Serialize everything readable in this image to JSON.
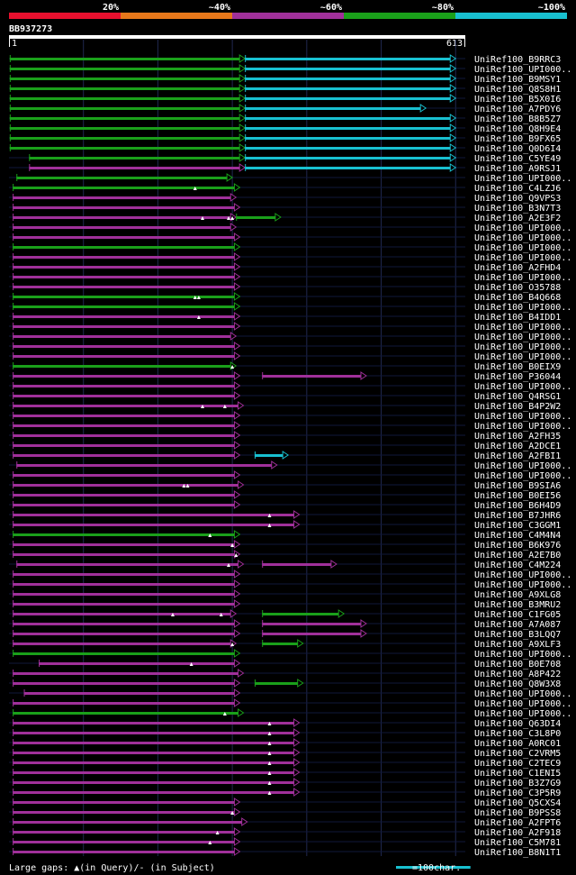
{
  "chart_data": {
    "type": "alignment-map",
    "query_id": "BB937273",
    "query_start": "1",
    "query_end": "613",
    "query_length": 613,
    "legend_bins": [
      {
        "label": "20%",
        "color": "#e8102e"
      },
      {
        "label": "~40%",
        "color": "#e8781a"
      },
      {
        "label": "~60%",
        "color": "#a0309a"
      },
      {
        "label": "~80%",
        "color": "#1aa01a"
      },
      {
        "label": "~100%",
        "color": "#18c0d0"
      }
    ],
    "footer_gaps": "Large gaps: ▲(in Query)/- (in Subject)",
    "footer_scale": "=100char.",
    "scale_chars": 100,
    "hits": [
      {
        "name": "UniRef100_B9RRC3",
        "segs": [
          [
            1,
            317,
            "g"
          ],
          [
            317,
            600,
            "c"
          ]
        ],
        "gaps": []
      },
      {
        "name": "UniRef100_UPI000..",
        "segs": [
          [
            1,
            317,
            "g"
          ],
          [
            317,
            600,
            "c"
          ]
        ],
        "gaps": []
      },
      {
        "name": "UniRef100_B9MSY1",
        "segs": [
          [
            1,
            317,
            "g"
          ],
          [
            317,
            600,
            "c"
          ]
        ],
        "gaps": []
      },
      {
        "name": "UniRef100_Q8S8H1",
        "segs": [
          [
            1,
            317,
            "g"
          ],
          [
            317,
            600,
            "c"
          ]
        ],
        "gaps": []
      },
      {
        "name": "UniRef100_B5X0I6",
        "segs": [
          [
            1,
            317,
            "g"
          ],
          [
            317,
            600,
            "c"
          ]
        ],
        "gaps": []
      },
      {
        "name": "UniRef100_A7PDY6",
        "segs": [
          [
            1,
            317,
            "g"
          ],
          [
            317,
            560,
            "c"
          ]
        ],
        "gaps": []
      },
      {
        "name": "UniRef100_B8B5Z7",
        "segs": [
          [
            1,
            317,
            "g"
          ],
          [
            317,
            600,
            "c"
          ]
        ],
        "gaps": []
      },
      {
        "name": "UniRef100_Q8H9E4",
        "segs": [
          [
            1,
            317,
            "g"
          ],
          [
            317,
            600,
            "c"
          ]
        ],
        "gaps": []
      },
      {
        "name": "UniRef100_B9FX65",
        "segs": [
          [
            1,
            317,
            "g"
          ],
          [
            317,
            600,
            "c"
          ]
        ],
        "gaps": []
      },
      {
        "name": "UniRef100_Q0D6I4",
        "segs": [
          [
            1,
            317,
            "g"
          ],
          [
            317,
            600,
            "c"
          ]
        ],
        "gaps": []
      },
      {
        "name": "UniRef100_C5YE49",
        "segs": [
          [
            27,
            317,
            "g"
          ],
          [
            317,
            600,
            "c"
          ]
        ],
        "gaps": []
      },
      {
        "name": "UniRef100_A9RSJ1",
        "segs": [
          [
            27,
            317,
            "p"
          ],
          [
            317,
            600,
            "c"
          ]
        ],
        "gaps": []
      },
      {
        "name": "UniRef100_UPI000..",
        "segs": [
          [
            10,
            300,
            "g"
          ]
        ],
        "gaps": []
      },
      {
        "name": "UniRef100_C4LZJ6",
        "segs": [
          [
            5,
            310,
            "g"
          ]
        ],
        "gaps": [
          250
        ]
      },
      {
        "name": "UniRef100_Q9VPS3",
        "segs": [
          [
            5,
            305,
            "p"
          ]
        ],
        "gaps": []
      },
      {
        "name": "UniRef100_B3N7T3",
        "segs": [
          [
            5,
            310,
            "p"
          ]
        ],
        "gaps": []
      },
      {
        "name": "UniRef100_A2E3F2",
        "segs": [
          [
            5,
            305,
            "p"
          ],
          [
            305,
            365,
            "g"
          ]
        ],
        "gaps": [
          260,
          295,
          300
        ]
      },
      {
        "name": "UniRef100_UPI000..",
        "segs": [
          [
            5,
            305,
            "p"
          ]
        ],
        "gaps": []
      },
      {
        "name": "UniRef100_UPI000..",
        "segs": [
          [
            5,
            310,
            "p"
          ]
        ],
        "gaps": []
      },
      {
        "name": "UniRef100_UPI000..",
        "segs": [
          [
            5,
            310,
            "g"
          ]
        ],
        "gaps": []
      },
      {
        "name": "UniRef100_UPI000..",
        "segs": [
          [
            5,
            310,
            "p"
          ]
        ],
        "gaps": []
      },
      {
        "name": "UniRef100_A2FHD4",
        "segs": [
          [
            5,
            310,
            "p"
          ]
        ],
        "gaps": []
      },
      {
        "name": "UniRef100_UPI000..",
        "segs": [
          [
            5,
            310,
            "p"
          ]
        ],
        "gaps": []
      },
      {
        "name": "UniRef100_O35788",
        "segs": [
          [
            5,
            310,
            "p"
          ]
        ],
        "gaps": []
      },
      {
        "name": "UniRef100_B4Q668",
        "segs": [
          [
            5,
            310,
            "g"
          ]
        ],
        "gaps": [
          250,
          255
        ]
      },
      {
        "name": "UniRef100_UPI000..",
        "segs": [
          [
            5,
            310,
            "g"
          ]
        ],
        "gaps": []
      },
      {
        "name": "UniRef100_B4IDD1",
        "segs": [
          [
            5,
            310,
            "p"
          ]
        ],
        "gaps": [
          255
        ]
      },
      {
        "name": "UniRef100_UPI000..",
        "segs": [
          [
            5,
            310,
            "p"
          ]
        ],
        "gaps": []
      },
      {
        "name": "UniRef100_UPI000..",
        "segs": [
          [
            5,
            305,
            "p"
          ]
        ],
        "gaps": []
      },
      {
        "name": "UniRef100_UPI000..",
        "segs": [
          [
            5,
            310,
            "p"
          ]
        ],
        "gaps": []
      },
      {
        "name": "UniRef100_UPI000..",
        "segs": [
          [
            5,
            310,
            "p"
          ]
        ],
        "gaps": []
      },
      {
        "name": "UniRef100_B0EIX9",
        "segs": [
          [
            5,
            305,
            "g"
          ]
        ],
        "gaps": [
          300
        ]
      },
      {
        "name": "UniRef100_P36044",
        "segs": [
          [
            5,
            310,
            "p"
          ],
          [
            340,
            480,
            "p"
          ]
        ],
        "gaps": []
      },
      {
        "name": "UniRef100_UPI000..",
        "segs": [
          [
            5,
            310,
            "p"
          ]
        ],
        "gaps": []
      },
      {
        "name": "UniRef100_Q4RSG1",
        "segs": [
          [
            5,
            310,
            "p"
          ]
        ],
        "gaps": []
      },
      {
        "name": "UniRef100_B4P2W2",
        "segs": [
          [
            5,
            315,
            "p"
          ]
        ],
        "gaps": [
          260,
          290
        ]
      },
      {
        "name": "UniRef100_UPI000..",
        "segs": [
          [
            5,
            310,
            "p"
          ]
        ],
        "gaps": []
      },
      {
        "name": "UniRef100_UPI000..",
        "segs": [
          [
            5,
            310,
            "p"
          ]
        ],
        "gaps": []
      },
      {
        "name": "UniRef100_A2FH35",
        "segs": [
          [
            5,
            310,
            "p"
          ]
        ],
        "gaps": []
      },
      {
        "name": "UniRef100_A2DCE1",
        "segs": [
          [
            5,
            310,
            "p"
          ]
        ],
        "gaps": []
      },
      {
        "name": "UniRef100_A2FBI1",
        "segs": [
          [
            5,
            310,
            "p"
          ],
          [
            330,
            375,
            "c"
          ]
        ],
        "gaps": []
      },
      {
        "name": "UniRef100_UPI000..",
        "segs": [
          [
            10,
            360,
            "p"
          ]
        ],
        "gaps": []
      },
      {
        "name": "UniRef100_UPI000..",
        "segs": [
          [
            5,
            310,
            "p"
          ]
        ],
        "gaps": []
      },
      {
        "name": "UniRef100_B9SIA6",
        "segs": [
          [
            5,
            315,
            "p"
          ]
        ],
        "gaps": [
          235,
          240
        ]
      },
      {
        "name": "UniRef100_B0EI56",
        "segs": [
          [
            5,
            310,
            "p"
          ]
        ],
        "gaps": []
      },
      {
        "name": "UniRef100_B6H4D9",
        "segs": [
          [
            5,
            310,
            "p"
          ]
        ],
        "gaps": []
      },
      {
        "name": "UniRef100_B7JHR6",
        "segs": [
          [
            5,
            390,
            "p"
          ]
        ],
        "gaps": [
          350
        ]
      },
      {
        "name": "UniRef100_C3GGM1",
        "segs": [
          [
            5,
            390,
            "p"
          ]
        ],
        "gaps": [
          350
        ]
      },
      {
        "name": "UniRef100_C4M4N4",
        "segs": [
          [
            5,
            310,
            "g"
          ]
        ],
        "gaps": [
          270
        ]
      },
      {
        "name": "UniRef100_B6K976",
        "segs": [
          [
            5,
            310,
            "p"
          ]
        ],
        "gaps": [
          300
        ]
      },
      {
        "name": "UniRef100_A2E7B0",
        "segs": [
          [
            5,
            310,
            "p"
          ]
        ],
        "gaps": [
          305
        ]
      },
      {
        "name": "UniRef100_C4M224",
        "segs": [
          [
            10,
            315,
            "p"
          ],
          [
            340,
            440,
            "p"
          ]
        ],
        "gaps": [
          295
        ]
      },
      {
        "name": "UniRef100_UPI000..",
        "segs": [
          [
            5,
            310,
            "p"
          ]
        ],
        "gaps": []
      },
      {
        "name": "UniRef100_UPI000..",
        "segs": [
          [
            5,
            310,
            "p"
          ]
        ],
        "gaps": []
      },
      {
        "name": "UniRef100_A9XLG8",
        "segs": [
          [
            5,
            310,
            "p"
          ]
        ],
        "gaps": []
      },
      {
        "name": "UniRef100_B3MRU2",
        "segs": [
          [
            5,
            310,
            "p"
          ]
        ],
        "gaps": []
      },
      {
        "name": "UniRef100_C1FG05",
        "segs": [
          [
            5,
            305,
            "p"
          ],
          [
            340,
            450,
            "g"
          ]
        ],
        "gaps": [
          220,
          285
        ]
      },
      {
        "name": "UniRef100_A7A087",
        "segs": [
          [
            5,
            310,
            "p"
          ],
          [
            340,
            480,
            "p"
          ]
        ],
        "gaps": []
      },
      {
        "name": "UniRef100_B3LQQ7",
        "segs": [
          [
            5,
            310,
            "p"
          ],
          [
            340,
            480,
            "p"
          ]
        ],
        "gaps": []
      },
      {
        "name": "UniRef100_A9XLF3",
        "segs": [
          [
            5,
            305,
            "p"
          ],
          [
            340,
            395,
            "g"
          ]
        ],
        "gaps": [
          300
        ]
      },
      {
        "name": "UniRef100_UPI000..",
        "segs": [
          [
            5,
            310,
            "g"
          ]
        ],
        "gaps": []
      },
      {
        "name": "UniRef100_B0E708",
        "segs": [
          [
            40,
            310,
            "p"
          ]
        ],
        "gaps": [
          245
        ]
      },
      {
        "name": "UniRef100_A8P422",
        "segs": [
          [
            5,
            315,
            "p"
          ]
        ],
        "gaps": []
      },
      {
        "name": "UniRef100_Q8W3X8",
        "segs": [
          [
            5,
            310,
            "p"
          ],
          [
            330,
            395,
            "g"
          ]
        ],
        "gaps": []
      },
      {
        "name": "UniRef100_UPI000..",
        "segs": [
          [
            20,
            310,
            "p"
          ]
        ],
        "gaps": []
      },
      {
        "name": "UniRef100_UPI000..",
        "segs": [
          [
            5,
            310,
            "p"
          ]
        ],
        "gaps": []
      },
      {
        "name": "UniRef100_UPI000..",
        "segs": [
          [
            5,
            315,
            "g"
          ]
        ],
        "gaps": [
          290
        ]
      },
      {
        "name": "UniRef100_Q63DI4",
        "segs": [
          [
            5,
            390,
            "p"
          ]
        ],
        "gaps": [
          350
        ]
      },
      {
        "name": "UniRef100_C3L8P0",
        "segs": [
          [
            5,
            390,
            "p"
          ]
        ],
        "gaps": [
          350
        ]
      },
      {
        "name": "UniRef100_A0RC01",
        "segs": [
          [
            5,
            390,
            "p"
          ]
        ],
        "gaps": [
          350
        ]
      },
      {
        "name": "UniRef100_C2VRM5",
        "segs": [
          [
            5,
            390,
            "p"
          ]
        ],
        "gaps": [
          350
        ]
      },
      {
        "name": "UniRef100_C2TEC9",
        "segs": [
          [
            5,
            390,
            "p"
          ]
        ],
        "gaps": [
          350
        ]
      },
      {
        "name": "UniRef100_C1ENI5",
        "segs": [
          [
            5,
            390,
            "p"
          ]
        ],
        "gaps": [
          350
        ]
      },
      {
        "name": "UniRef100_B3Z7G9",
        "segs": [
          [
            5,
            390,
            "p"
          ]
        ],
        "gaps": [
          350
        ]
      },
      {
        "name": "UniRef100_C3P5R9",
        "segs": [
          [
            5,
            390,
            "p"
          ]
        ],
        "gaps": [
          350
        ]
      },
      {
        "name": "UniRef100_Q5CXS4",
        "segs": [
          [
            5,
            310,
            "p"
          ]
        ],
        "gaps": []
      },
      {
        "name": "UniRef100_B9PSS8",
        "segs": [
          [
            5,
            310,
            "p"
          ]
        ],
        "gaps": [
          300
        ]
      },
      {
        "name": "UniRef100_A2FPT6",
        "segs": [
          [
            5,
            320,
            "p"
          ]
        ],
        "gaps": []
      },
      {
        "name": "UniRef100_A2F918",
        "segs": [
          [
            5,
            310,
            "p"
          ]
        ],
        "gaps": [
          280
        ]
      },
      {
        "name": "UniRef100_C5M781",
        "segs": [
          [
            5,
            310,
            "p"
          ]
        ],
        "gaps": [
          270
        ]
      },
      {
        "name": "UniRef100_B8N1T1",
        "segs": [
          [
            5,
            310,
            "p"
          ]
        ],
        "gaps": []
      }
    ]
  }
}
